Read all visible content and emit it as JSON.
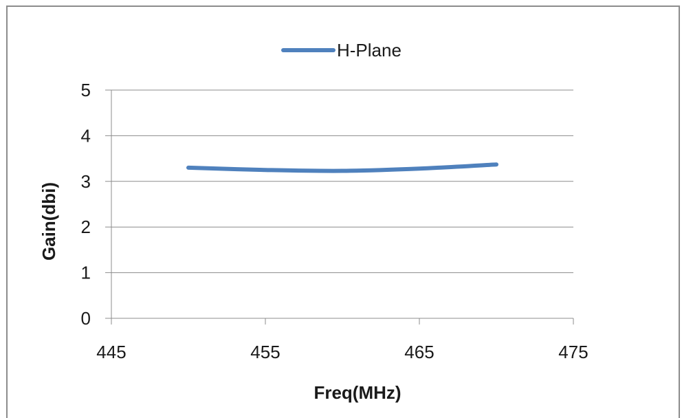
{
  "chart_data": {
    "type": "line",
    "title": "",
    "xlabel": "Freq(MHz)",
    "ylabel": "Gain(dbi)",
    "xlim": [
      445,
      475
    ],
    "ylim": [
      0,
      5
    ],
    "xticks": [
      445,
      455,
      465,
      475
    ],
    "yticks": [
      0,
      1,
      2,
      3,
      4,
      5
    ],
    "grid": true,
    "legend_position": "top-center",
    "series": [
      {
        "name": "H-Plane",
        "color": "#4f81bd",
        "x": [
          450,
          455,
          460,
          465,
          470
        ],
        "y": [
          3.3,
          3.25,
          3.23,
          3.28,
          3.37
        ]
      }
    ]
  }
}
